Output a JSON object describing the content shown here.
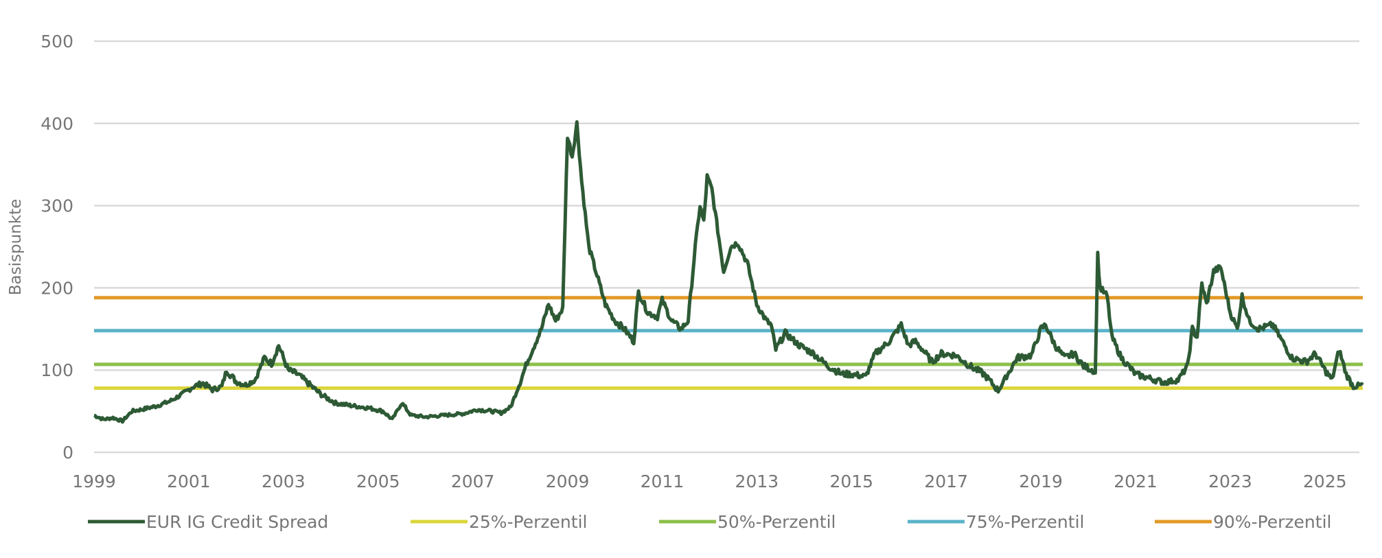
{
  "chart_data": {
    "type": "line",
    "title": "",
    "xlabel": "",
    "ylabel": "Basispunkte",
    "ylim": [
      0,
      500
    ],
    "xlim": [
      1999,
      2025.8
    ],
    "y_ticks": [
      0,
      100,
      200,
      300,
      400,
      500
    ],
    "x_ticks": [
      "1999",
      "2001",
      "2003",
      "2005",
      "2007",
      "2009",
      "2011",
      "2013",
      "2015",
      "2017",
      "2019",
      "2021",
      "2023",
      "2025"
    ],
    "grid": true,
    "legend_position": "bottom",
    "series": [
      {
        "name": "EUR IG Credit Spread",
        "color": "#2d5a35",
        "x": [
          1999.0,
          1999.2,
          1999.4,
          1999.6,
          1999.8,
          2000.0,
          2000.3,
          2000.6,
          2000.9,
          2001.1,
          2001.3,
          2001.5,
          2001.7,
          2001.8,
          2002.0,
          2002.2,
          2002.4,
          2002.6,
          2002.75,
          2002.9,
          2003.1,
          2003.3,
          2003.5,
          2003.8,
          2004.1,
          2004.4,
          2004.8,
          2005.1,
          2005.3,
          2005.5,
          2005.7,
          2006.0,
          2006.4,
          2006.8,
          2007.1,
          2007.4,
          2007.6,
          2007.8,
          2008.0,
          2008.15,
          2008.3,
          2008.45,
          2008.6,
          2008.75,
          2008.9,
          2009.0,
          2009.1,
          2009.2,
          2009.3,
          2009.45,
          2009.6,
          2009.8,
          2010.0,
          2010.2,
          2010.4,
          2010.5,
          2010.7,
          2010.9,
          2011.0,
          2011.2,
          2011.4,
          2011.55,
          2011.7,
          2011.8,
          2011.88,
          2011.95,
          2012.05,
          2012.2,
          2012.3,
          2012.45,
          2012.6,
          2012.8,
          2013.0,
          2013.2,
          2013.3,
          2013.4,
          2013.6,
          2013.9,
          2014.2,
          2014.5,
          2014.8,
          2015.0,
          2015.3,
          2015.5,
          2015.8,
          2016.05,
          2016.2,
          2016.35,
          2016.5,
          2016.7,
          2016.9,
          2017.2,
          2017.5,
          2017.8,
          2018.1,
          2018.3,
          2018.5,
          2018.8,
          2019.0,
          2019.1,
          2019.3,
          2019.5,
          2019.7,
          2019.9,
          2020.1,
          2020.15,
          2020.2,
          2020.25,
          2020.4,
          2020.5,
          2020.7,
          2021.0,
          2021.3,
          2021.6,
          2021.9,
          2022.1,
          2022.2,
          2022.3,
          2022.4,
          2022.5,
          2022.65,
          2022.8,
          2023.0,
          2023.15,
          2023.25,
          2023.4,
          2023.6,
          2023.9,
          2024.1,
          2024.3,
          2024.6,
          2024.8,
          2025.0,
          2025.15,
          2025.3,
          2025.45,
          2025.6,
          2025.8
        ],
        "values": [
          45,
          40,
          42,
          38,
          50,
          52,
          56,
          62,
          72,
          80,
          84,
          76,
          80,
          100,
          86,
          82,
          88,
          115,
          108,
          130,
          100,
          95,
          85,
          70,
          60,
          57,
          54,
          50,
          40,
          60,
          45,
          43,
          45,
          47,
          52,
          50,
          48,
          55,
          85,
          110,
          130,
          150,
          180,
          160,
          175,
          385,
          360,
          400,
          330,
          250,
          220,
          180,
          160,
          150,
          135,
          195,
          170,
          165,
          185,
          160,
          150,
          160,
          250,
          300,
          280,
          335,
          320,
          260,
          220,
          250,
          255,
          230,
          180,
          160,
          155,
          125,
          145,
          130,
          120,
          105,
          95,
          95,
          92,
          120,
          135,
          155,
          130,
          135,
          125,
          110,
          120,
          118,
          105,
          95,
          75,
          95,
          115,
          118,
          150,
          155,
          130,
          115,
          120,
          105,
          100,
          95,
          240,
          200,
          190,
          140,
          115,
          95,
          90,
          85,
          88,
          105,
          150,
          140,
          205,
          180,
          220,
          225,
          170,
          150,
          190,
          160,
          150,
          155,
          135,
          115,
          110,
          120,
          100,
          88,
          125,
          95,
          80,
          82
        ]
      },
      {
        "name": "25%-Perzentil",
        "color": "#dcd63c",
        "value": 78
      },
      {
        "name": "50%-Perzentil",
        "color": "#8cbf4a",
        "value": 107
      },
      {
        "name": "75%-Perzentil",
        "color": "#5bb3c8",
        "value": 148
      },
      {
        "name": "90%-Perzentil",
        "color": "#e29a27",
        "value": 188
      }
    ]
  }
}
